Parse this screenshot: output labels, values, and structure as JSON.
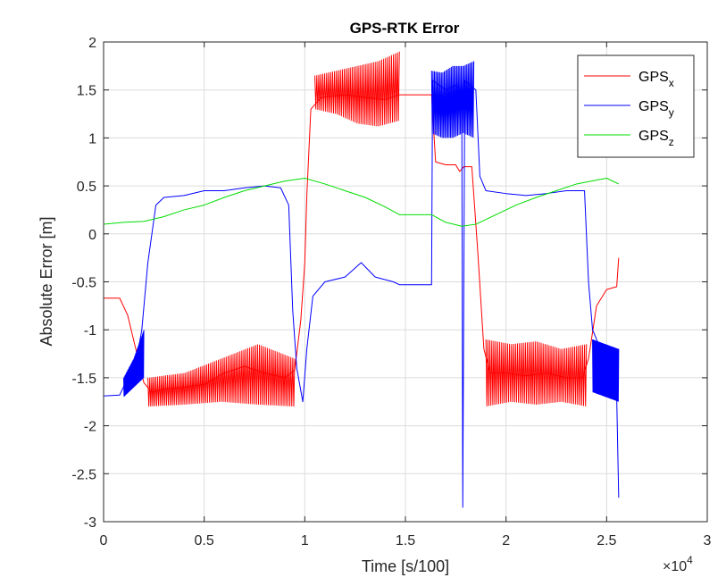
{
  "chart_data": {
    "type": "line",
    "title": "GPS-RTK Error",
    "xlabel": "Time [s/100]",
    "ylabel": "Absolute Error [m]",
    "xlim": [
      0,
      30000
    ],
    "ylim": [
      -3,
      2
    ],
    "x_ticks": [
      0,
      5000,
      10000,
      15000,
      20000,
      25000,
      30000
    ],
    "x_tick_labels": [
      "0",
      "0.5",
      "1",
      "1.5",
      "2",
      "2.5",
      "3"
    ],
    "x_exponent_label": "×10",
    "x_exponent_power": "4",
    "y_ticks": [
      2,
      1.5,
      1,
      0.5,
      0,
      -0.5,
      -1,
      -1.5,
      -2,
      -2.5,
      -3
    ],
    "y_tick_labels": [
      "2",
      "1.5",
      "1",
      "0.5",
      "0",
      "-0.5",
      "-1",
      "-1.5",
      "-2",
      "-2.5",
      "-3"
    ],
    "grid": true,
    "legend_position": "top-right",
    "series": [
      {
        "name": "GPS",
        "subscript": "x",
        "color": "#ff0000",
        "points": [
          [
            0,
            -0.67
          ],
          [
            800,
            -0.67
          ],
          [
            1200,
            -0.85
          ],
          [
            1600,
            -1.2
          ],
          [
            2000,
            -1.55
          ],
          [
            2400,
            -1.65
          ],
          [
            3000,
            -1.62
          ],
          [
            4000,
            -1.6
          ],
          [
            5000,
            -1.57
          ],
          [
            6000,
            -1.45
          ],
          [
            7000,
            -1.38
          ],
          [
            8000,
            -1.45
          ],
          [
            9000,
            -1.5
          ],
          [
            9500,
            -1.42
          ],
          [
            9800,
            -0.9
          ],
          [
            10000,
            -0.3
          ],
          [
            10100,
            0.4
          ],
          [
            10300,
            1.3
          ],
          [
            10800,
            1.42
          ],
          [
            12000,
            1.45
          ],
          [
            13000,
            1.42
          ],
          [
            14000,
            1.4
          ],
          [
            14700,
            1.45
          ],
          [
            15000,
            1.45
          ],
          [
            16000,
            1.45
          ],
          [
            16300,
            1.45
          ],
          [
            16500,
            0.75
          ],
          [
            17000,
            0.72
          ],
          [
            17500,
            0.72
          ],
          [
            17700,
            0.65
          ],
          [
            17900,
            0.7
          ],
          [
            18300,
            0.7
          ],
          [
            18600,
            -0.2
          ],
          [
            18900,
            -1.2
          ],
          [
            19200,
            -1.45
          ],
          [
            20000,
            -1.45
          ],
          [
            21000,
            -1.48
          ],
          [
            22000,
            -1.45
          ],
          [
            23000,
            -1.5
          ],
          [
            23800,
            -1.5
          ],
          [
            24100,
            -1.3
          ],
          [
            24500,
            -0.75
          ],
          [
            25000,
            -0.58
          ],
          [
            25500,
            -0.55
          ],
          [
            25600,
            -0.25
          ]
        ],
        "bands": [
          {
            "x_start": 2200,
            "x_end": 9500,
            "low": [
              -1.8,
              -1.78,
              -1.75,
              -1.78,
              -1.8
            ],
            "high": [
              -1.5,
              -1.45,
              -1.3,
              -1.15,
              -1.3
            ]
          },
          {
            "x_start": 10500,
            "x_end": 14700,
            "low": [
              1.3,
              1.25,
              1.15,
              1.12,
              1.18
            ],
            "high": [
              1.65,
              1.7,
              1.75,
              1.8,
              1.9
            ]
          },
          {
            "x_start": 19000,
            "x_end": 24000,
            "low": [
              -1.8,
              -1.75,
              -1.78,
              -1.75,
              -1.8
            ],
            "high": [
              -1.1,
              -1.15,
              -1.12,
              -1.2,
              -1.15
            ]
          }
        ]
      },
      {
        "name": "GPS",
        "subscript": "y",
        "color": "#0000ff",
        "points": [
          [
            0,
            -1.69
          ],
          [
            800,
            -1.68
          ],
          [
            1200,
            -1.5
          ],
          [
            1600,
            -1.35
          ],
          [
            1900,
            -1.0
          ],
          [
            2200,
            -0.3
          ],
          [
            2600,
            0.3
          ],
          [
            3000,
            0.38
          ],
          [
            4000,
            0.4
          ],
          [
            5000,
            0.45
          ],
          [
            6000,
            0.45
          ],
          [
            7000,
            0.48
          ],
          [
            8000,
            0.5
          ],
          [
            8800,
            0.48
          ],
          [
            9200,
            0.3
          ],
          [
            9400,
            -0.8
          ],
          [
            9600,
            -1.4
          ],
          [
            9900,
            -1.75
          ],
          [
            10100,
            -1.2
          ],
          [
            10400,
            -0.65
          ],
          [
            11000,
            -0.5
          ],
          [
            12000,
            -0.45
          ],
          [
            12800,
            -0.3
          ],
          [
            13500,
            -0.45
          ],
          [
            14400,
            -0.5
          ],
          [
            14700,
            -0.53
          ],
          [
            16300,
            -0.53
          ],
          [
            16350,
            1.6
          ],
          [
            17000,
            1.5
          ],
          [
            17500,
            1.55
          ],
          [
            17800,
            1.5
          ],
          [
            17850,
            -2.85
          ],
          [
            17950,
            1.6
          ],
          [
            18500,
            1.5
          ],
          [
            18700,
            0.6
          ],
          [
            19000,
            0.45
          ],
          [
            20000,
            0.42
          ],
          [
            21000,
            0.4
          ],
          [
            22000,
            0.42
          ],
          [
            23000,
            0.45
          ],
          [
            23900,
            0.45
          ],
          [
            24100,
            -0.5
          ],
          [
            24300,
            -1.0
          ],
          [
            24700,
            -1.2
          ],
          [
            25200,
            -1.3
          ],
          [
            25500,
            -1.7
          ],
          [
            25600,
            -2.75
          ]
        ],
        "bands": [
          {
            "x_start": 1000,
            "x_end": 2000,
            "low": [
              -1.7,
              -1.6,
              -1.5
            ],
            "high": [
              -1.5,
              -1.3,
              -1.0
            ]
          },
          {
            "x_start": 16300,
            "x_end": 18400,
            "low": [
              1.05,
              1.0,
              1.0,
              1.05,
              1.0
            ],
            "high": [
              1.7,
              1.68,
              1.75,
              1.75,
              1.8
            ]
          },
          {
            "x_start": 24300,
            "x_end": 25600,
            "low": [
              -1.65,
              -1.7,
              -1.75
            ],
            "high": [
              -1.1,
              -1.15,
              -1.2
            ]
          }
        ]
      },
      {
        "name": "GPS",
        "subscript": "z",
        "color": "#00dd00",
        "points": [
          [
            0,
            0.1
          ],
          [
            1000,
            0.12
          ],
          [
            2000,
            0.13
          ],
          [
            3000,
            0.18
          ],
          [
            4000,
            0.25
          ],
          [
            5000,
            0.3
          ],
          [
            6000,
            0.38
          ],
          [
            7000,
            0.45
          ],
          [
            8000,
            0.5
          ],
          [
            9000,
            0.55
          ],
          [
            10000,
            0.58
          ],
          [
            11000,
            0.52
          ],
          [
            12000,
            0.45
          ],
          [
            13000,
            0.38
          ],
          [
            14000,
            0.28
          ],
          [
            14700,
            0.2
          ],
          [
            16300,
            0.2
          ],
          [
            17000,
            0.12
          ],
          [
            17800,
            0.08
          ],
          [
            18500,
            0.1
          ],
          [
            19500,
            0.2
          ],
          [
            20500,
            0.3
          ],
          [
            21500,
            0.38
          ],
          [
            22500,
            0.45
          ],
          [
            23500,
            0.52
          ],
          [
            24500,
            0.56
          ],
          [
            25000,
            0.58
          ],
          [
            25600,
            0.52
          ]
        ],
        "bands": []
      }
    ]
  }
}
